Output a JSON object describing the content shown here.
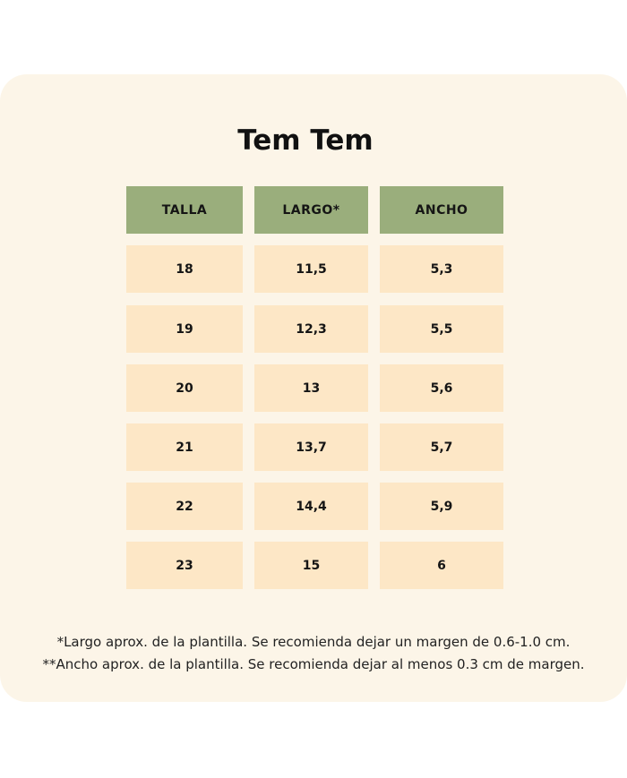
{
  "title": "Tem Tem",
  "table": {
    "headers": [
      "TALLA",
      "LARGO*",
      "ANCHO"
    ],
    "rows": [
      [
        "18",
        "11,5",
        "5,3"
      ],
      [
        "19",
        "12,3",
        "5,5"
      ],
      [
        "20",
        "13",
        "5,6"
      ],
      [
        "21",
        "13,7",
        "5,7"
      ],
      [
        "22",
        "14,4",
        "5,9"
      ],
      [
        "23",
        "15",
        "6"
      ]
    ]
  },
  "footnotes": [
    "*Largo aprox. de la plantilla. Se recomienda dejar un margen de 0.6-1.0 cm.",
    "**Ancho aprox. de la plantilla. Se recomienda dejar al menos 0.3 cm de margen."
  ],
  "colors": {
    "card_background": "#fcf5e8",
    "header_fill": "#9aae7c",
    "cell_fill": "#fde7c6"
  }
}
